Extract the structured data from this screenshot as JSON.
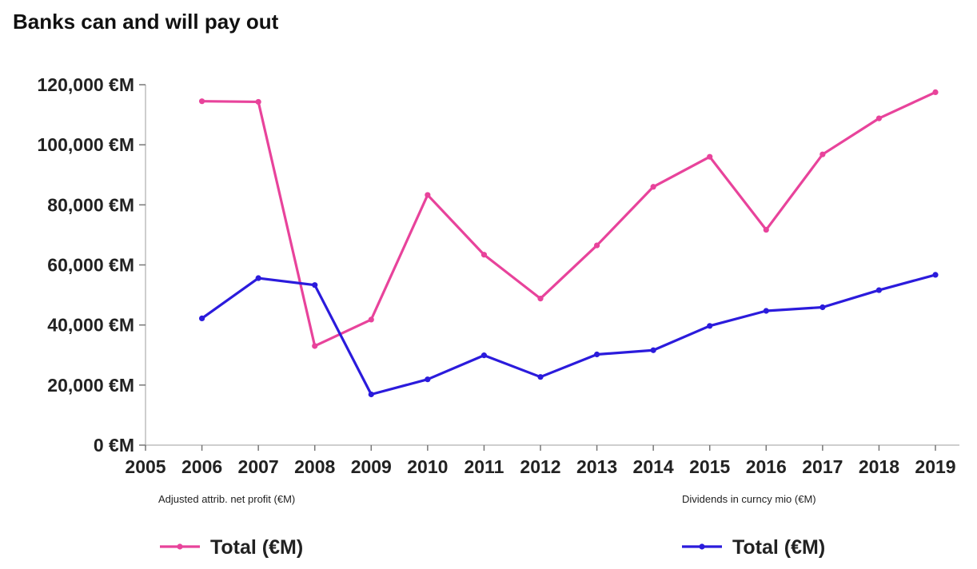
{
  "title": "Banks can and will pay out",
  "chart_data": {
    "type": "line",
    "title": "Banks can and will pay out",
    "x": [
      2006,
      2007,
      2008,
      2009,
      2010,
      2011,
      2012,
      2013,
      2014,
      2015,
      2016,
      2017,
      2018,
      2019
    ],
    "x_ticks": [
      "2005",
      "2006",
      "2007",
      "2008",
      "2009",
      "2010",
      "2011",
      "2012",
      "2013",
      "2014",
      "2015",
      "2016",
      "2017",
      "2018",
      "2019"
    ],
    "xlim": [
      2005,
      2019
    ],
    "y_ticks": [
      "0 €M",
      "20,000 €M",
      "40,000 €M",
      "60,000 €M",
      "80,000 €M",
      "100,000 €M",
      "120,000 €M"
    ],
    "ylim": [
      0,
      120000
    ],
    "grid": false,
    "legend_position": "bottom",
    "series": [
      {
        "name": "Total (€M)",
        "group_label": "Adjusted attrib. net profit (€M)",
        "color": "#e8439b",
        "values": [
          114500,
          114300,
          33000,
          41800,
          83300,
          63400,
          48800,
          66500,
          86000,
          96000,
          71700,
          96800,
          108800,
          117500
        ]
      },
      {
        "name": "Total (€M)",
        "group_label": "Dividends in curncy mio (€M)",
        "color": "#2b1bdc",
        "values": [
          42200,
          55600,
          53300,
          16900,
          21900,
          29900,
          22700,
          30200,
          31600,
          39700,
          44700,
          45900,
          51600,
          56700
        ]
      }
    ]
  }
}
